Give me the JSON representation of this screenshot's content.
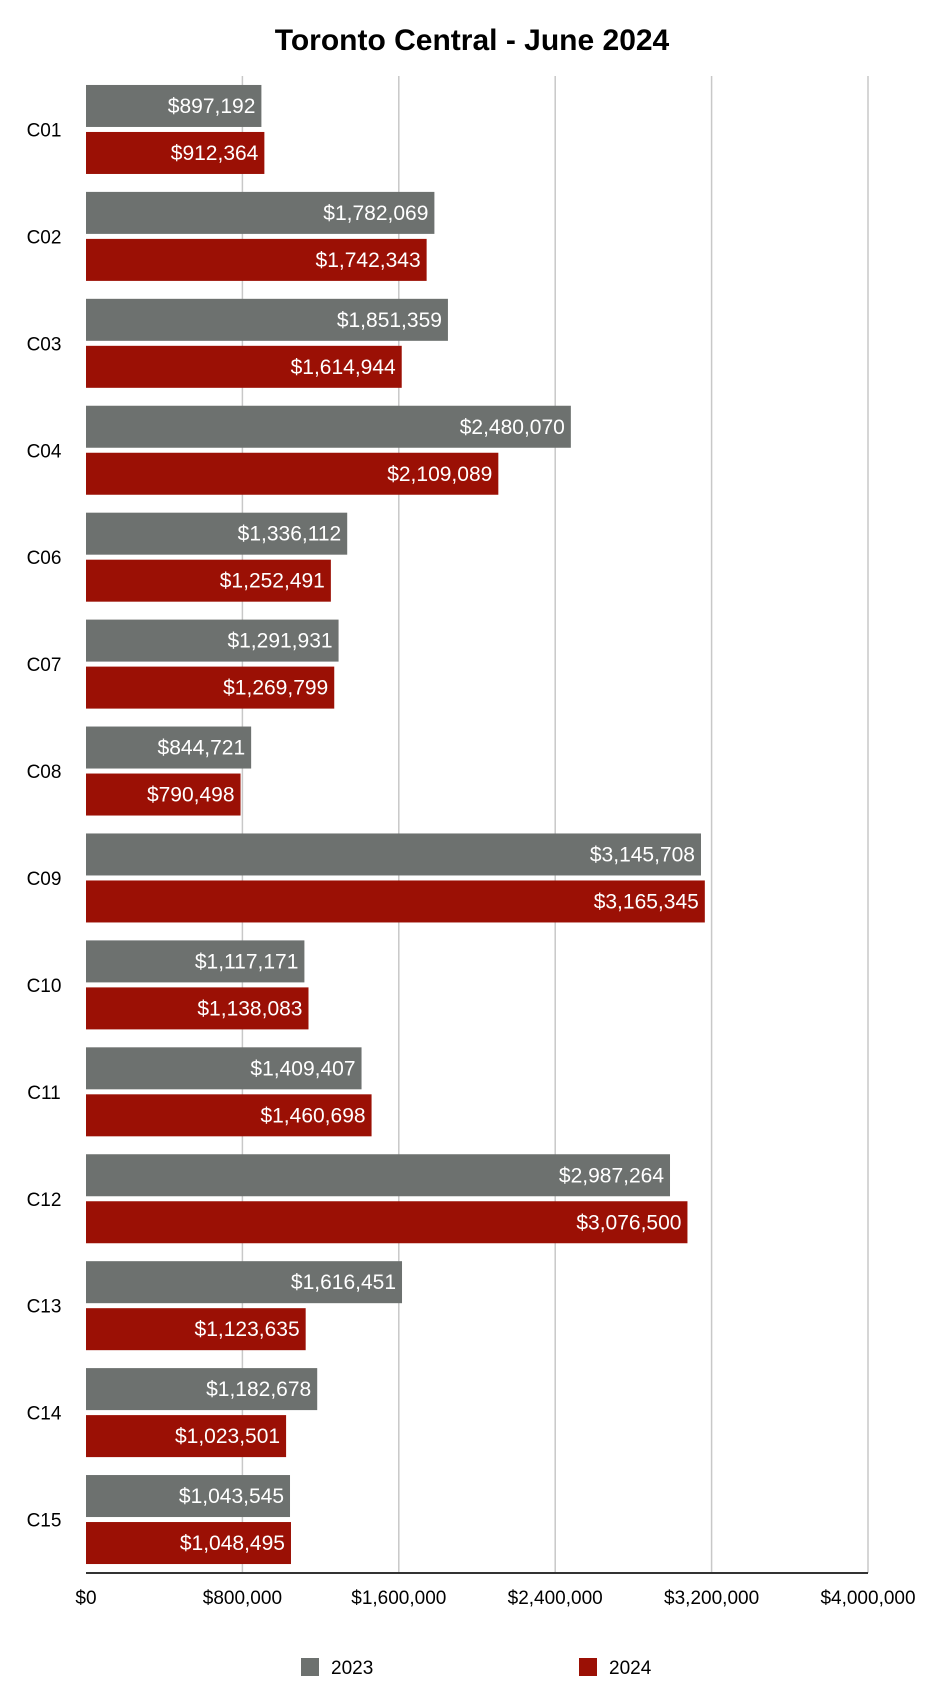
{
  "chart_data": {
    "type": "bar",
    "orientation": "horizontal",
    "title": "Toronto Central - June 2024",
    "xlabel": "",
    "ylabel": "",
    "xlim": [
      0,
      4000000
    ],
    "x_ticks": [
      "$0",
      "$800,000",
      "$1,600,000",
      "$2,400,000",
      "$3,200,000",
      "$4,000,000"
    ],
    "x_tick_values": [
      0,
      800000,
      1600000,
      2400000,
      3200000,
      4000000
    ],
    "grid": true,
    "legend_position": "bottom",
    "categories": [
      "C01",
      "C02",
      "C03",
      "C04",
      "C06",
      "C07",
      "C08",
      "C09",
      "C10",
      "C11",
      "C12",
      "C13",
      "C14",
      "C15"
    ],
    "series": [
      {
        "name": "2023",
        "color": "#6d716f",
        "values": [
          897192,
          1782069,
          1851359,
          2480070,
          1336112,
          1291931,
          844721,
          3145708,
          1117171,
          1409407,
          2987264,
          1616451,
          1182678,
          1043545
        ],
        "labels": [
          "$897,192",
          "$1,782,069",
          "$1,851,359",
          "$2,480,070",
          "$1,336,112",
          "$1,291,931",
          "$844,721",
          "$3,145,708",
          "$1,117,171",
          "$1,409,407",
          "$2,987,264",
          "$1,616,451",
          "$1,182,678",
          "$1,043,545"
        ]
      },
      {
        "name": "2024",
        "color": "#9b1005",
        "values": [
          912364,
          1742343,
          1614944,
          2109089,
          1252491,
          1269799,
          790498,
          3165345,
          1138083,
          1460698,
          3076500,
          1123635,
          1023501,
          1048495
        ],
        "labels": [
          "$912,364",
          "$1,742,343",
          "$1,614,944",
          "$2,109,089",
          "$1,252,491",
          "$1,269,799",
          "$790,498",
          "$3,165,345",
          "$1,138,083",
          "$1,460,698",
          "$3,076,500",
          "$1,123,635",
          "$1,023,501",
          "$1,048,495"
        ]
      }
    ]
  }
}
